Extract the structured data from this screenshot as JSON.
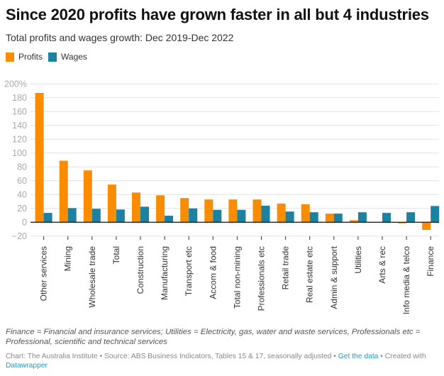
{
  "header": {
    "title": "Since 2020 profits have grown faster in all but 4 industries",
    "subtitle": "Total profits and wages growth: Dec 2019-Dec 2022"
  },
  "legend": [
    {
      "label": "Profits",
      "color": "#f98c00"
    },
    {
      "label": "Wages",
      "color": "#1d81a2"
    }
  ],
  "footer": {
    "notes": "Finance = Financial and insurance services; Utilities = Electricity, gas, water and waste services, Professionals etc = Professional, scientific and technical services",
    "credit_prefix": "Chart: The Australia Institute • Source: ABS Business Indicators, Tables 15 & 17, seasonally adjusted • ",
    "get_data_link": "Get the data",
    "created_with": " • Created with ",
    "datawrapper_link": "Datawrapper"
  },
  "chart_data": {
    "type": "bar",
    "title": "Since 2020 profits have grown faster in all but 4 industries",
    "subtitle": "Total profits and wages growth: Dec 2019-Dec 2022",
    "xlabel": "",
    "ylabel": "",
    "ylim": [
      -20,
      200
    ],
    "yticks": [
      -20,
      0,
      20,
      40,
      60,
      80,
      100,
      120,
      140,
      160,
      180,
      200
    ],
    "ytick_labels": [
      "−20",
      "0",
      "20",
      "40",
      "60",
      "80",
      "100",
      "120",
      "140",
      "160",
      "180",
      "200%"
    ],
    "grid": true,
    "legend_position": "top-left",
    "categories": [
      "Other services",
      "Mining",
      "Wholesale trade",
      "Total",
      "Construction",
      "Manufacturing",
      "Transport etc",
      "Accom & food",
      "Total non-mining",
      "Professionals etc",
      "Retail trade",
      "Real estate etc",
      "Admin & support",
      "Utilities",
      "Arts & rec",
      "Info media & telco",
      "Finance"
    ],
    "series": [
      {
        "name": "Profits",
        "color": "#f98c00",
        "values": [
          187,
          89,
          75,
          54.5,
          43,
          39,
          35,
          33,
          33,
          33,
          27,
          26,
          12.5,
          3,
          0,
          -1.5,
          -11
        ]
      },
      {
        "name": "Wages",
        "color": "#1d81a2",
        "values": [
          13.5,
          20.5,
          19.5,
          18.5,
          22.5,
          9.5,
          20,
          18,
          18,
          24,
          15.5,
          14.5,
          12.5,
          14.5,
          13.5,
          14.5,
          23.5
        ]
      }
    ]
  }
}
